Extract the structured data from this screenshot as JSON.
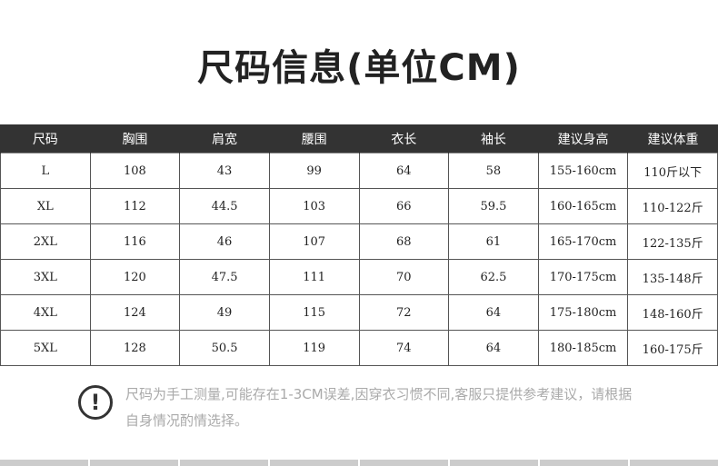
{
  "title": "尺码信息(单位CM)",
  "table": {
    "headers": [
      "尺码",
      "胸围",
      "肩宽",
      "腰围",
      "衣长",
      "袖长",
      "建议身高",
      "建议体重"
    ],
    "rows": [
      [
        "L",
        "108",
        "43",
        "99",
        "64",
        "58",
        "155-160cm",
        "110斤以下"
      ],
      [
        "XL",
        "112",
        "44.5",
        "103",
        "66",
        "59.5",
        "160-165cm",
        "110-122斤"
      ],
      [
        "2XL",
        "116",
        "46",
        "107",
        "68",
        "61",
        "165-170cm",
        "122-135斤"
      ],
      [
        "3XL",
        "120",
        "47.5",
        "111",
        "70",
        "62.5",
        "170-175cm",
        "135-148斤"
      ],
      [
        "4XL",
        "124",
        "49",
        "115",
        "72",
        "64",
        "175-180cm",
        "148-160斤"
      ],
      [
        "5XL",
        "128",
        "50.5",
        "119",
        "74",
        "64",
        "180-185cm",
        "160-175斤"
      ]
    ]
  },
  "note": {
    "icon": "exclamation-circle-icon",
    "symbol": "!",
    "text": "尺码为手工测量,可能存在1-3CM误差,因穿衣习惯不同,客服只提供参考建议，请根据自身情况酌情选择。"
  }
}
